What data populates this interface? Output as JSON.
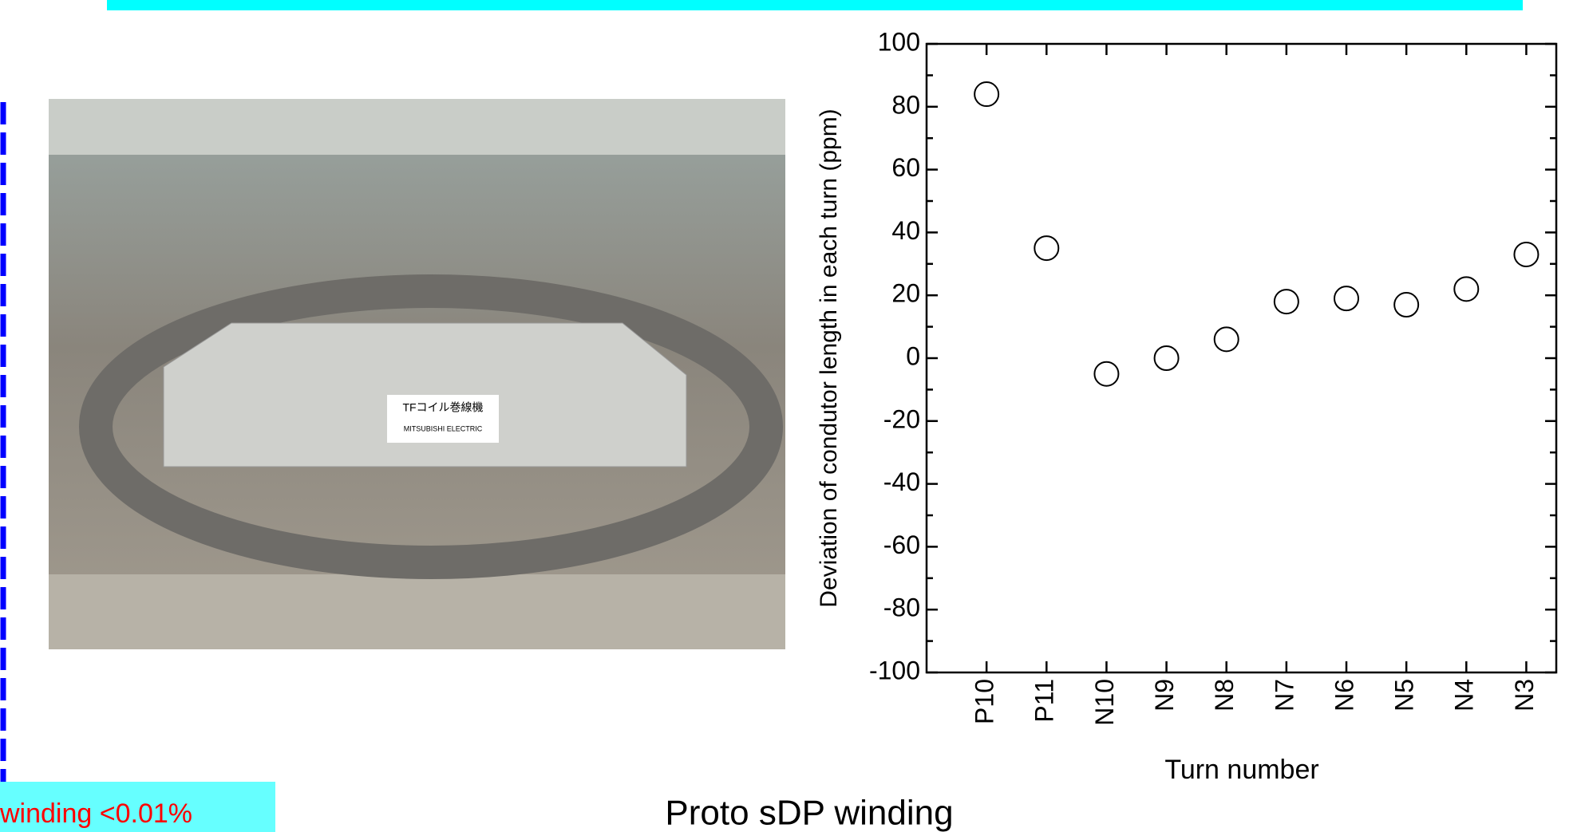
{
  "chart_data": {
    "type": "scatter",
    "x_label": "Turn number",
    "y_label": "Deviation of condutor length in each turn  (ppm)",
    "categories": [
      "P10",
      "P11",
      "N10",
      "N9",
      "N8",
      "N7",
      "N6",
      "N5",
      "N4",
      "N3"
    ],
    "values": [
      84,
      35,
      -5,
      0,
      6,
      18,
      19,
      17,
      22,
      33
    ],
    "ylim": [
      -100,
      100
    ],
    "yticks": [
      -100,
      -80,
      -60,
      -40,
      -20,
      0,
      20,
      40,
      60,
      80,
      100
    ],
    "marker": "open-circle",
    "color": "#000000"
  },
  "photo": {
    "sign": "TFコイル巻線機",
    "brand": "MITSUBISHI ELECTRIC"
  },
  "note": "winding <0.01%",
  "caption": "Proto sDP winding"
}
